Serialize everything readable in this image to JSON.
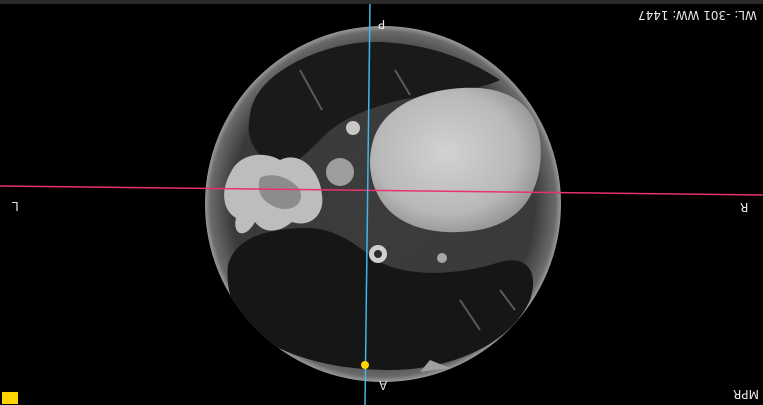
{
  "viewer": {
    "window_level_text": "WL: -301 WW: 1447",
    "mode_label": "MPR",
    "orientation": {
      "top": "P",
      "bottom": "A",
      "left": "L",
      "right": "R"
    },
    "colors": {
      "background": "#000000",
      "crosshair_horizontal": "#e8336f",
      "crosshair_vertical": "#3fb7ea",
      "crosshair_handle": "#ffd400",
      "corner_marker": "#ffd400"
    }
  }
}
